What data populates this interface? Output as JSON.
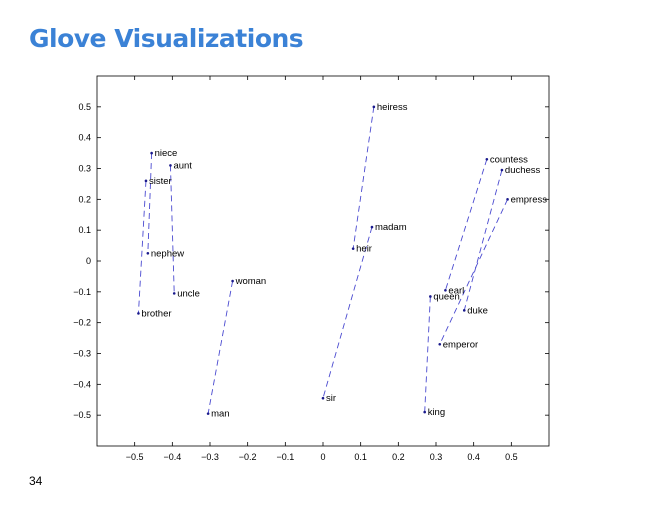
{
  "slide": {
    "title": "Glove Visualizations",
    "page_number": "34"
  },
  "chart_data": {
    "type": "scatter",
    "title": "",
    "xlabel": "",
    "ylabel": "",
    "xlim": [
      -0.6,
      0.6
    ],
    "ylim": [
      -0.6,
      0.6
    ],
    "xticks": [
      -0.5,
      -0.4,
      -0.3,
      -0.2,
      -0.1,
      0,
      0.1,
      0.2,
      0.3,
      0.4,
      0.5
    ],
    "xtick_labels": [
      "−0.5",
      "−0.4",
      "−0.3",
      "−0.2",
      "−0.1",
      "0",
      "0.1",
      "0.2",
      "0.3",
      "0.4",
      "0.5"
    ],
    "yticks": [
      0.5,
      0.4,
      0.3,
      0.2,
      0.1,
      0,
      -0.1,
      -0.2,
      -0.3,
      -0.4,
      -0.5
    ],
    "ytick_labels": [
      "0.5",
      "0.4",
      "0.3",
      "0.2",
      "0.1",
      "0",
      "−0.1",
      "−0.2",
      "−0.3",
      "−0.4",
      "−0.5"
    ],
    "grid": false,
    "point_color": "#1a1a8c",
    "line_color": "#4a4ad0",
    "points": [
      {
        "word": "heiress",
        "x": 0.135,
        "y": 0.5
      },
      {
        "word": "niece",
        "x": -0.455,
        "y": 0.35
      },
      {
        "word": "aunt",
        "x": -0.405,
        "y": 0.31
      },
      {
        "word": "sister",
        "x": -0.47,
        "y": 0.26
      },
      {
        "word": "countess",
        "x": 0.435,
        "y": 0.33
      },
      {
        "word": "duchess",
        "x": 0.475,
        "y": 0.295
      },
      {
        "word": "empress",
        "x": 0.49,
        "y": 0.2
      },
      {
        "word": "madam",
        "x": 0.13,
        "y": 0.11
      },
      {
        "word": "heir",
        "x": 0.08,
        "y": 0.04
      },
      {
        "word": "nephew",
        "x": -0.465,
        "y": 0.025
      },
      {
        "word": "woman",
        "x": -0.24,
        "y": -0.065
      },
      {
        "word": "earl",
        "x": 0.325,
        "y": -0.095
      },
      {
        "word": "uncle",
        "x": -0.395,
        "y": -0.105
      },
      {
        "word": "queen",
        "x": 0.285,
        "y": -0.115
      },
      {
        "word": "duke",
        "x": 0.375,
        "y": -0.16
      },
      {
        "word": "brother",
        "x": -0.49,
        "y": -0.17
      },
      {
        "word": "emperor",
        "x": 0.31,
        "y": -0.27
      },
      {
        "word": "sir",
        "x": 0.0,
        "y": -0.445
      },
      {
        "word": "man",
        "x": -0.305,
        "y": -0.495
      },
      {
        "word": "king",
        "x": 0.27,
        "y": -0.49
      }
    ],
    "pairs": [
      [
        "heiress",
        "heir"
      ],
      [
        "madam",
        "sir"
      ],
      [
        "niece",
        "nephew"
      ],
      [
        "aunt",
        "uncle"
      ],
      [
        "sister",
        "brother"
      ],
      [
        "woman",
        "man"
      ],
      [
        "countess",
        "earl"
      ],
      [
        "duchess",
        "duke"
      ],
      [
        "empress",
        "emperor"
      ],
      [
        "queen",
        "king"
      ]
    ]
  }
}
